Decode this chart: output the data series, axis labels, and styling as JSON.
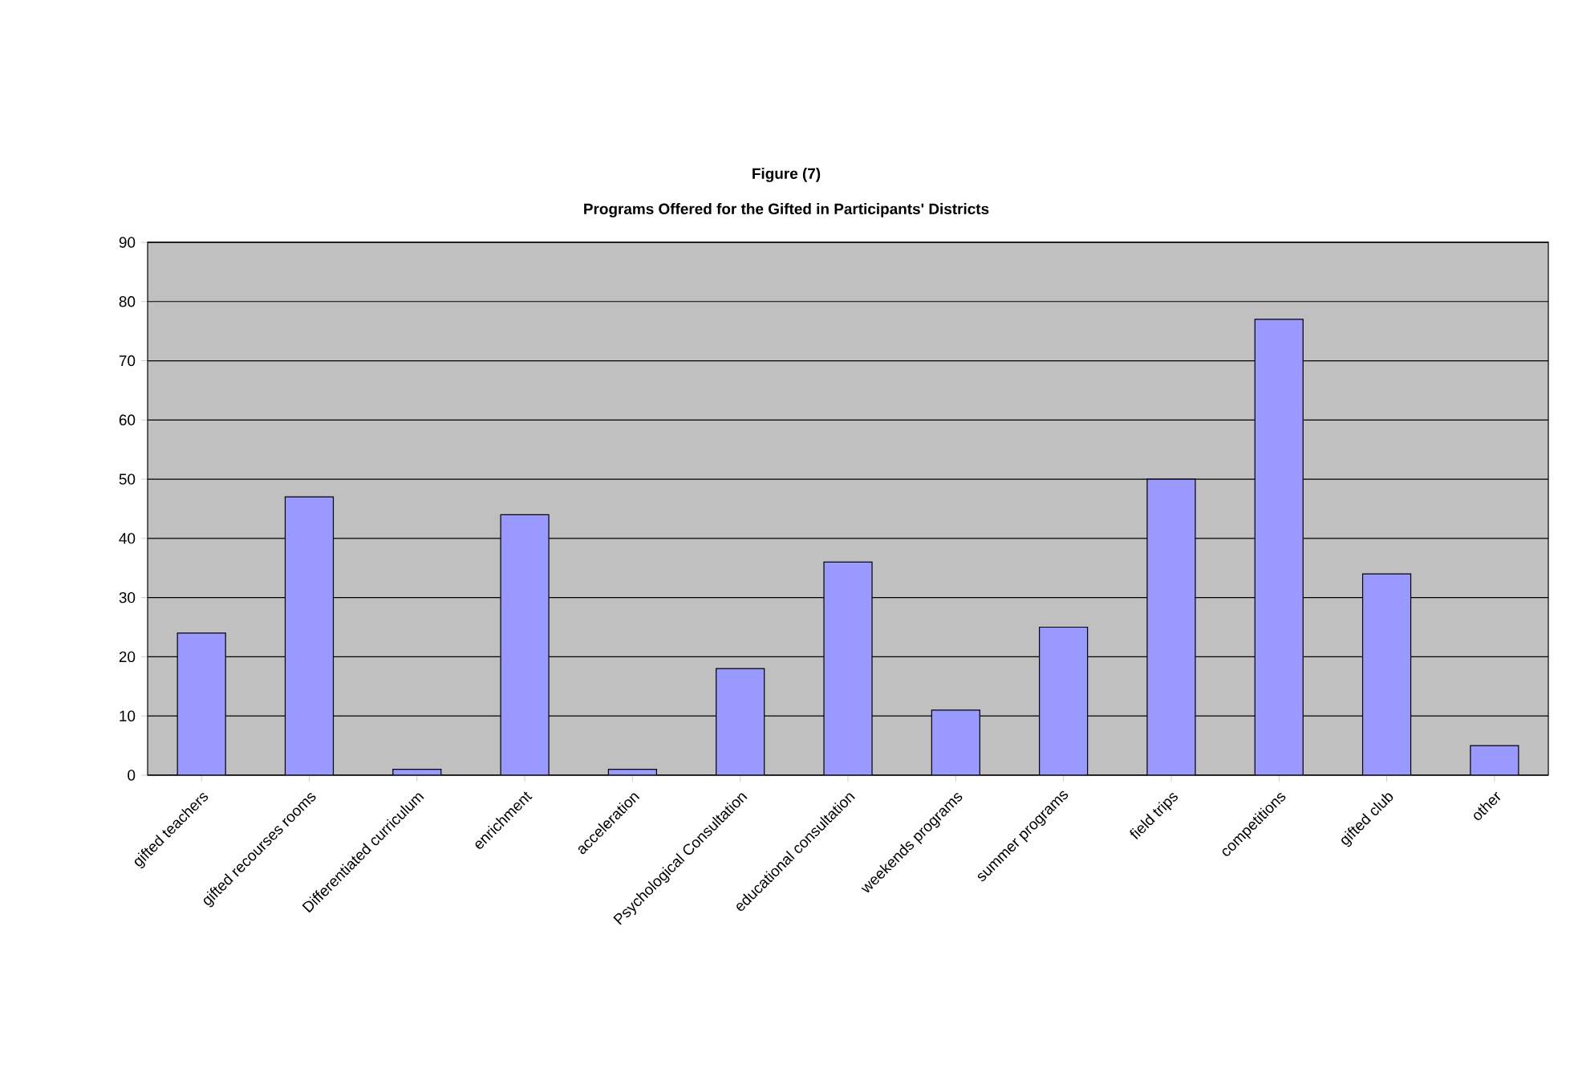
{
  "chart_data": {
    "type": "bar",
    "title": "Figure (7)",
    "subtitle": "Programs Offered for the Gifted in Participants' Districts",
    "categories": [
      "gifted teachers",
      "gifted recourses rooms",
      "Differentiated curriculum",
      "enrichment",
      "acceleration",
      "Psychological Consultation",
      "educational consultation",
      "weekends programs",
      "summer programs",
      "field trips",
      "competitions",
      "gifted club",
      "other"
    ],
    "values": [
      24,
      47,
      1,
      44,
      1,
      18,
      36,
      11,
      25,
      50,
      77,
      34,
      5
    ],
    "color": "#9999ff",
    "ylim": [
      0,
      90
    ],
    "yticks": [
      0,
      10,
      20,
      30,
      40,
      50,
      60,
      70,
      80,
      90
    ],
    "grid": "y"
  }
}
